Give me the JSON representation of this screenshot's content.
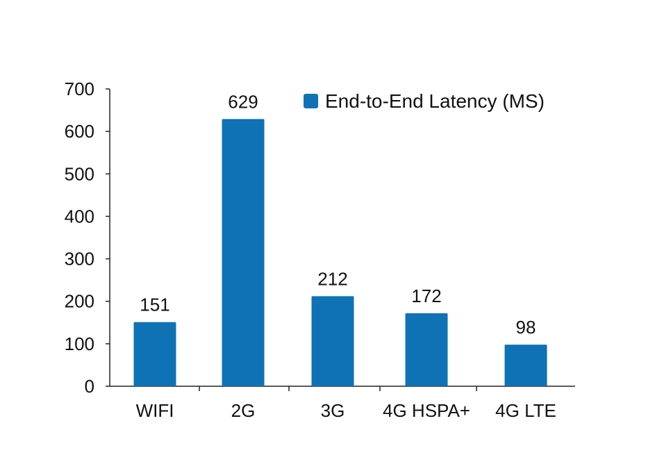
{
  "chart_data": {
    "type": "bar",
    "categories": [
      "WIFI",
      "2G",
      "3G",
      "4G HSPA+",
      "4G LTE"
    ],
    "series": [
      {
        "name": "End-to-End Latency (MS)",
        "values": [
          151,
          629,
          212,
          172,
          98
        ],
        "color": "#0f72b5"
      }
    ],
    "ylim": [
      0,
      700
    ],
    "yticks": [
      0,
      100,
      200,
      300,
      400,
      500,
      600,
      700
    ],
    "data_labels": [
      "151",
      "629",
      "212",
      "172",
      "98"
    ],
    "grid": false,
    "legend_position": "top-right"
  }
}
